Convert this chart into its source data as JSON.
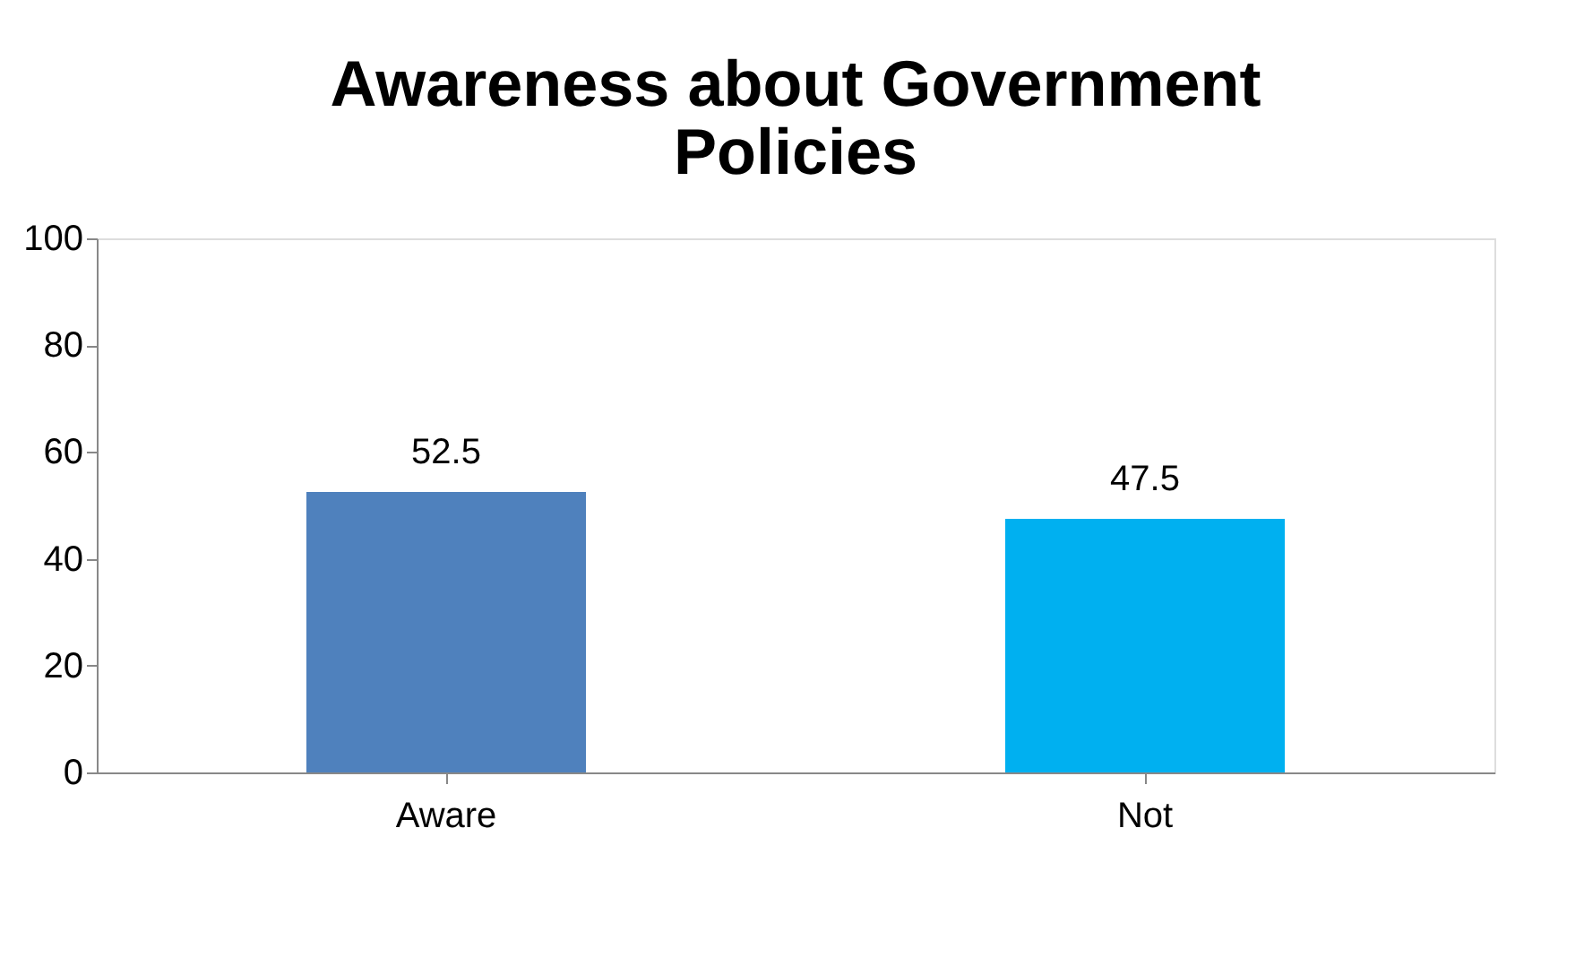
{
  "chart_data": {
    "type": "bar",
    "title": "Awareness about Government Policies",
    "categories": [
      "Aware",
      "Not"
    ],
    "values": [
      52.5,
      47.5
    ],
    "colors": [
      "#4f81bd",
      "#00b0f0"
    ],
    "ylim": [
      0,
      100
    ],
    "yticks": [
      0,
      20,
      40,
      60,
      80,
      100
    ],
    "data_labels": true,
    "grid": false,
    "legend": false
  }
}
